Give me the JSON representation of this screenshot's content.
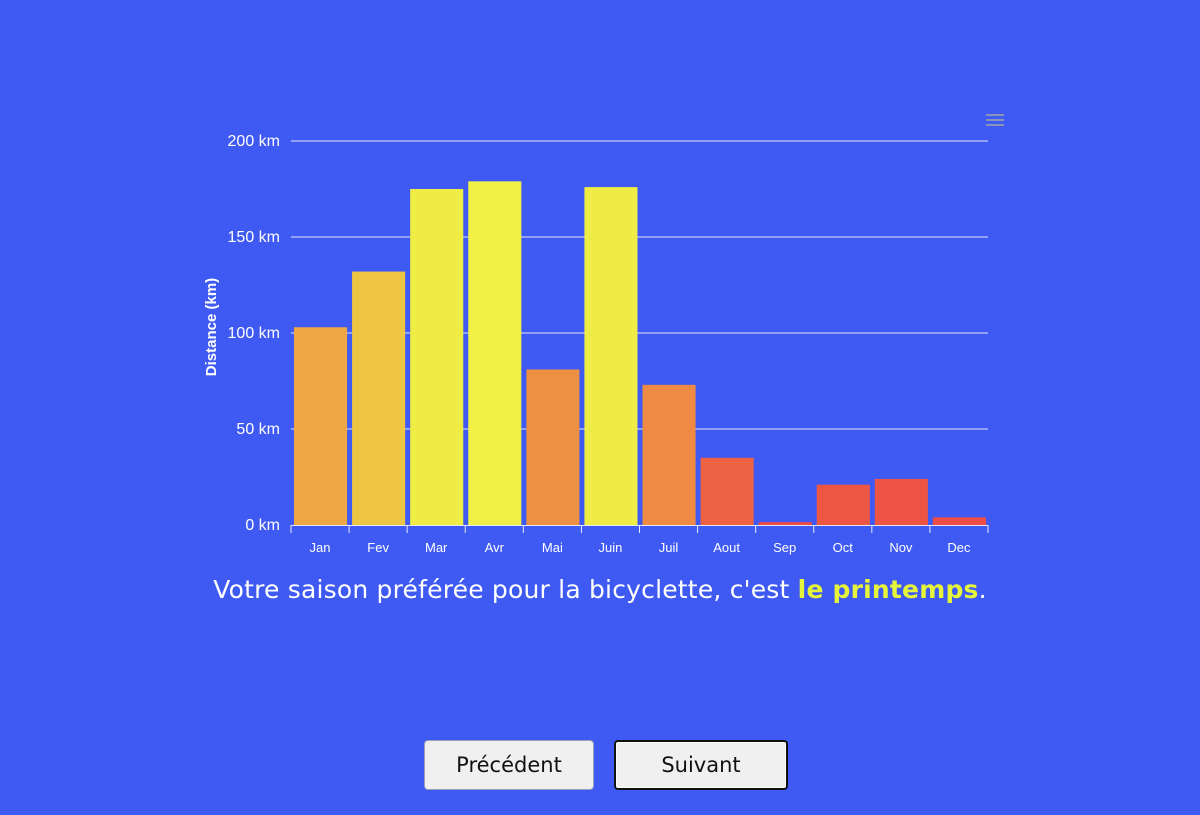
{
  "chart_data": {
    "type": "bar",
    "categories": [
      "Jan",
      "Fev",
      "Mar",
      "Avr",
      "Mai",
      "Juin",
      "Juil",
      "Aout",
      "Sep",
      "Oct",
      "Nov",
      "Dec"
    ],
    "values": [
      103,
      132,
      175,
      179,
      81,
      176,
      73,
      35,
      1.5,
      21,
      24,
      4
    ],
    "ylabel": "Distance (km)",
    "ylim": [
      0,
      200
    ],
    "yticks": [
      0,
      50,
      100,
      150,
      200
    ],
    "ytick_labels": [
      "0 km",
      "50 km",
      "100 km",
      "150 km",
      "200 km"
    ],
    "grid": true,
    "colors": [
      "#eda744",
      "#edc444",
      "#f0ec46",
      "#f0f046",
      "#ed9044",
      "#f0ec46",
      "#ee8a44",
      "#ee6244",
      "#ee4a44",
      "#ee5644",
      "#ee5444",
      "#ee4e44"
    ]
  },
  "caption": {
    "prefix": "Votre saison préférée pour la bicyclette, c'est ",
    "highlight": "le printemps",
    "suffix": "."
  },
  "buttons": {
    "prev_label": "Précédent",
    "next_label": "Suivant"
  },
  "colors": {
    "background": "#3f5af2",
    "highlight": "#e6f53a"
  }
}
